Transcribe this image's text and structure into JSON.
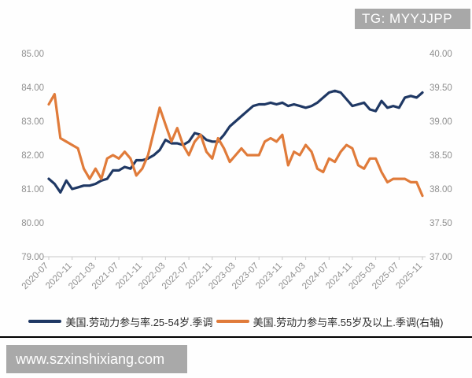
{
  "badge": {
    "text": "TG: MYYJJPP"
  },
  "watermark": {
    "url_text": "www.szxinshixiang.com"
  },
  "colors": {
    "series_primary": "#1f3864",
    "series_secondary": "#e07b3a",
    "badge_bg": "#a8a8a8",
    "watermark_bg": "#a9a9a9",
    "axis_text": "#8f8f8f",
    "axis_line": "#c8c8c8",
    "divider": "#000000",
    "background": "#fefefe"
  },
  "chart_data": {
    "type": "line",
    "title": "",
    "xlabel": "",
    "ylabel": "",
    "grid": false,
    "legend_position": "bottom",
    "x_tick_every": 4,
    "x": [
      "2020-07",
      "2020-08",
      "2020-09",
      "2020-10",
      "2020-11",
      "2020-12",
      "2021-01",
      "2021-02",
      "2021-03",
      "2021-04",
      "2021-05",
      "2021-06",
      "2021-07",
      "2021-08",
      "2021-09",
      "2021-10",
      "2021-11",
      "2021-12",
      "2022-01",
      "2022-02",
      "2022-03",
      "2022-04",
      "2022-05",
      "2022-06",
      "2022-07",
      "2022-08",
      "2022-09",
      "2022-10",
      "2022-11",
      "2022-12",
      "2023-01",
      "2023-02",
      "2023-03",
      "2023-04",
      "2023-05",
      "2023-06",
      "2023-07",
      "2023-08",
      "2023-09",
      "2023-10",
      "2023-11",
      "2023-12",
      "2024-01",
      "2024-02",
      "2024-03",
      "2024-04",
      "2024-05",
      "2024-06",
      "2024-07",
      "2024-08",
      "2024-09",
      "2024-10",
      "2024-11",
      "2024-12",
      "2025-01",
      "2025-02",
      "2025-03",
      "2025-04",
      "2025-05",
      "2025-06",
      "2025-07",
      "2025-08",
      "2025-09",
      "2025-10",
      "2025-11"
    ],
    "x_tick_labels": [
      "2020-07",
      "2020-11",
      "2021-03",
      "2021-07",
      "2021-11",
      "2022-03",
      "2022-07",
      "2022-11",
      "2023-03",
      "2023-07",
      "2023-11",
      "2024-03",
      "2024-07",
      "2024-11",
      "2025-03",
      "2025-07",
      "2025-11"
    ],
    "left_axis": {
      "min": 79,
      "max": 85,
      "ticks": [
        "85.00",
        "84.00",
        "83.00",
        "82.00",
        "81.00",
        "80.00",
        "79.00"
      ]
    },
    "right_axis": {
      "min": 37,
      "max": 40,
      "ticks": [
        "40.00",
        "39.50",
        "39.00",
        "38.50",
        "38.00",
        "37.50",
        "37.00"
      ]
    },
    "series": [
      {
        "name": "美国.劳动力参与率.25-54岁.季调",
        "axis": "left",
        "color": "#1f3864",
        "values": [
          81.3,
          81.15,
          80.9,
          81.25,
          81.0,
          81.05,
          81.1,
          81.1,
          81.15,
          81.25,
          81.3,
          81.55,
          81.55,
          81.65,
          81.6,
          81.85,
          81.85,
          81.9,
          82.0,
          82.15,
          82.45,
          82.35,
          82.35,
          82.3,
          82.4,
          82.65,
          82.6,
          82.45,
          82.4,
          82.4,
          82.6,
          82.85,
          83.0,
          83.15,
          83.3,
          83.45,
          83.5,
          83.5,
          83.55,
          83.5,
          83.55,
          83.45,
          83.5,
          83.45,
          83.4,
          83.45,
          83.55,
          83.7,
          83.85,
          83.9,
          83.85,
          83.65,
          83.45,
          83.5,
          83.55,
          83.35,
          83.3,
          83.6,
          83.4,
          83.45,
          83.4,
          83.7,
          83.75,
          83.7,
          83.85
        ]
      },
      {
        "name": "美国.劳动力参与率.55岁及以上.季调(右轴)",
        "axis": "right",
        "color": "#e07b3a",
        "values": [
          39.25,
          39.4,
          38.75,
          38.7,
          38.65,
          38.6,
          38.3,
          38.15,
          38.3,
          38.15,
          38.45,
          38.5,
          38.45,
          38.55,
          38.45,
          38.2,
          38.3,
          38.5,
          38.85,
          39.2,
          38.95,
          38.7,
          38.9,
          38.65,
          38.5,
          38.7,
          38.8,
          38.55,
          38.45,
          38.75,
          38.6,
          38.4,
          38.5,
          38.6,
          38.5,
          38.5,
          38.5,
          38.7,
          38.75,
          38.7,
          38.8,
          38.35,
          38.55,
          38.5,
          38.65,
          38.55,
          38.3,
          38.25,
          38.45,
          38.4,
          38.55,
          38.65,
          38.6,
          38.35,
          38.3,
          38.45,
          38.45,
          38.25,
          38.1,
          38.15,
          38.15,
          38.15,
          38.1,
          38.1,
          37.9
        ]
      }
    ]
  }
}
